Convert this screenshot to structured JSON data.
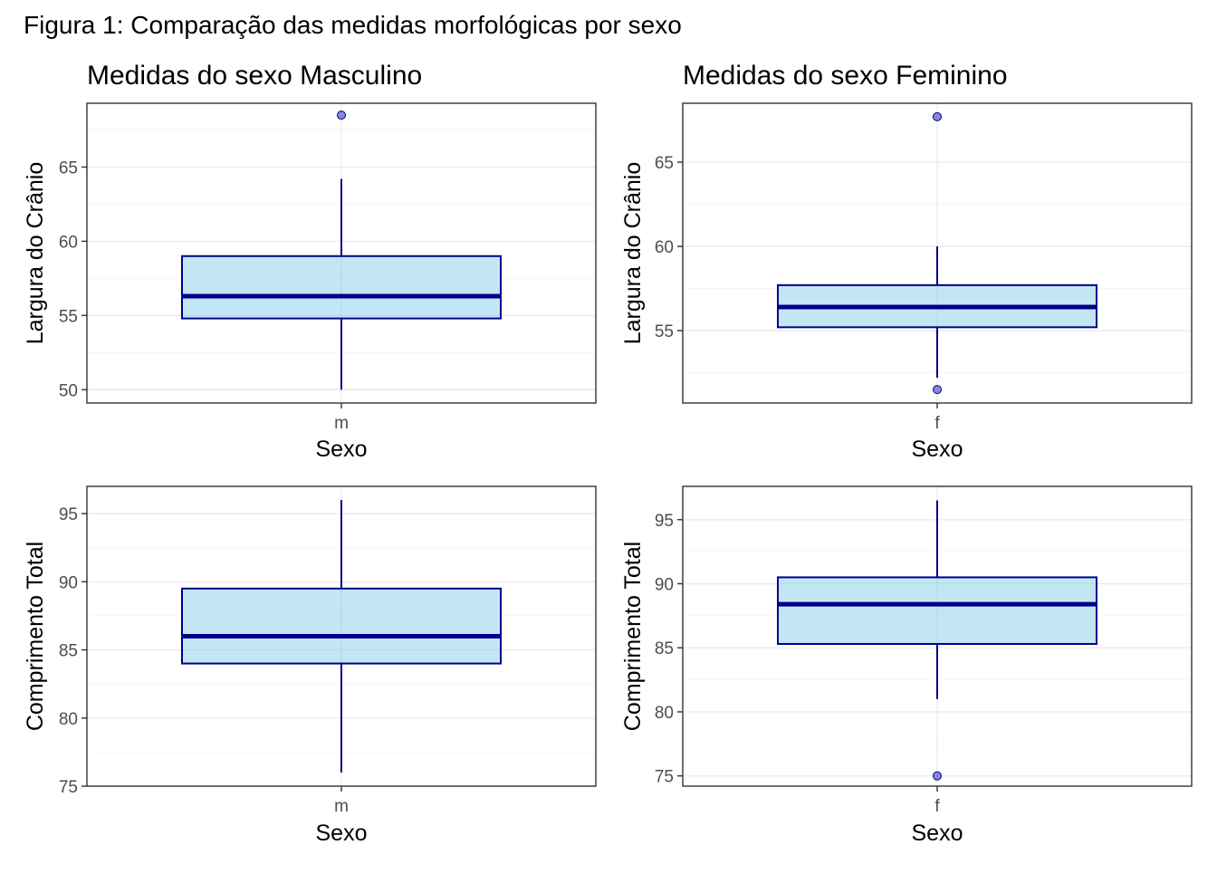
{
  "figure_title": "Figura 1: Comparação das medidas morfológicas por sexo",
  "colors": {
    "box_fill": "#87CEEB",
    "box_stroke": "#00008B",
    "outlier_fill": "#6A6ACD",
    "grid_major": "#EBEBEB",
    "grid_minor": "#F4F4F4",
    "panel_border": "#333333",
    "tick_text": "#4D4D4D"
  },
  "chart_data": [
    {
      "type": "box",
      "title": "Medidas do sexo Masculino",
      "xlabel": "Sexo",
      "ylabel": "Largura do Crânio",
      "categories": [
        "m"
      ],
      "ylim": [
        49.1,
        69.3
      ],
      "yticks": [
        50,
        55,
        60,
        65
      ],
      "box": {
        "whisker_low": 50,
        "q1": 54.8,
        "median": 56.3,
        "q3": 59,
        "whisker_high": 64.2,
        "outliers": [
          68.5
        ]
      },
      "grid": true
    },
    {
      "type": "box",
      "title": "Medidas do sexo Feminino",
      "xlabel": "Sexo",
      "ylabel": "Largura do Crânio",
      "categories": [
        "f"
      ],
      "ylim": [
        50.7,
        68.5
      ],
      "yticks": [
        55,
        60,
        65
      ],
      "box": {
        "whisker_low": 52.2,
        "q1": 55.2,
        "median": 56.4,
        "q3": 57.7,
        "whisker_high": 60,
        "outliers": [
          51.5,
          67.7
        ]
      },
      "grid": true
    },
    {
      "type": "box",
      "title": "",
      "xlabel": "Sexo",
      "ylabel": "Comprimento Total",
      "categories": [
        "m"
      ],
      "ylim": [
        75,
        97
      ],
      "yticks": [
        75,
        80,
        85,
        90,
        95
      ],
      "box": {
        "whisker_low": 76,
        "q1": 84,
        "median": 86,
        "q3": 89.5,
        "whisker_high": 96,
        "outliers": []
      },
      "grid": true
    },
    {
      "type": "box",
      "title": "",
      "xlabel": "Sexo",
      "ylabel": "Comprimento Total",
      "categories": [
        "f"
      ],
      "ylim": [
        74.2,
        97.6
      ],
      "yticks": [
        75,
        80,
        85,
        90,
        95
      ],
      "box": {
        "whisker_low": 81,
        "q1": 85.3,
        "median": 88.4,
        "q3": 90.5,
        "whisker_high": 96.5,
        "outliers": [
          75
        ]
      },
      "grid": true
    }
  ]
}
